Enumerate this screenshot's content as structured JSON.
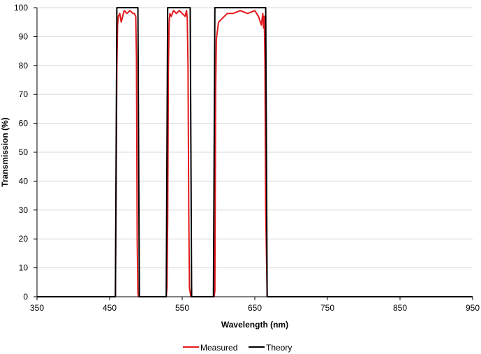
{
  "chart_data": {
    "type": "line",
    "title": "",
    "xlabel": "Wavelength (nm)",
    "ylabel": "Transmission (%)",
    "xlim": [
      350,
      950
    ],
    "ylim": [
      0,
      100
    ],
    "x_ticks": [
      350,
      450,
      550,
      650,
      750,
      850,
      950
    ],
    "y_ticks": [
      0,
      10,
      20,
      30,
      40,
      50,
      60,
      70,
      80,
      90,
      100
    ],
    "grid": "horizontal",
    "legend_position": "bottom",
    "series": [
      {
        "name": "Measured",
        "color": "#e3191c",
        "x": [
          350,
          458,
          460,
          461,
          462,
          464,
          466,
          470,
          474,
          478,
          482,
          484,
          486,
          487,
          488,
          489,
          490,
          491,
          528,
          529,
          530,
          531,
          532,
          533,
          535,
          538,
          542,
          546,
          550,
          554,
          556,
          557,
          558,
          559,
          560,
          562,
          563,
          594,
          595,
          596,
          597,
          598,
          600,
          604,
          608,
          612,
          620,
          630,
          640,
          650,
          655,
          659,
          661,
          662,
          663,
          664,
          665,
          667,
          950
        ],
        "y": [
          0,
          0,
          79,
          94,
          97,
          98,
          95,
          99,
          98,
          99,
          98,
          98,
          97,
          82,
          20,
          1,
          0,
          0,
          0,
          3,
          27,
          80,
          95,
          98,
          97,
          99,
          98,
          99,
          98,
          97,
          99,
          96,
          80,
          30,
          3,
          0,
          0,
          0,
          2,
          70,
          89,
          91,
          95,
          96,
          97,
          98,
          98,
          99,
          98,
          99,
          97,
          94,
          98,
          93,
          97,
          80,
          30,
          0,
          0
        ]
      },
      {
        "name": "Theory",
        "color": "#000000",
        "x": [
          350,
          458,
          459,
          460,
          489,
          490,
          491,
          528,
          529,
          530,
          561,
          562,
          563,
          593,
          594,
          595,
          665,
          666,
          667,
          950
        ],
        "y": [
          0,
          0,
          50,
          100,
          100,
          50,
          0,
          0,
          50,
          100,
          100,
          50,
          0,
          0,
          50,
          100,
          100,
          50,
          0,
          0
        ]
      }
    ]
  }
}
